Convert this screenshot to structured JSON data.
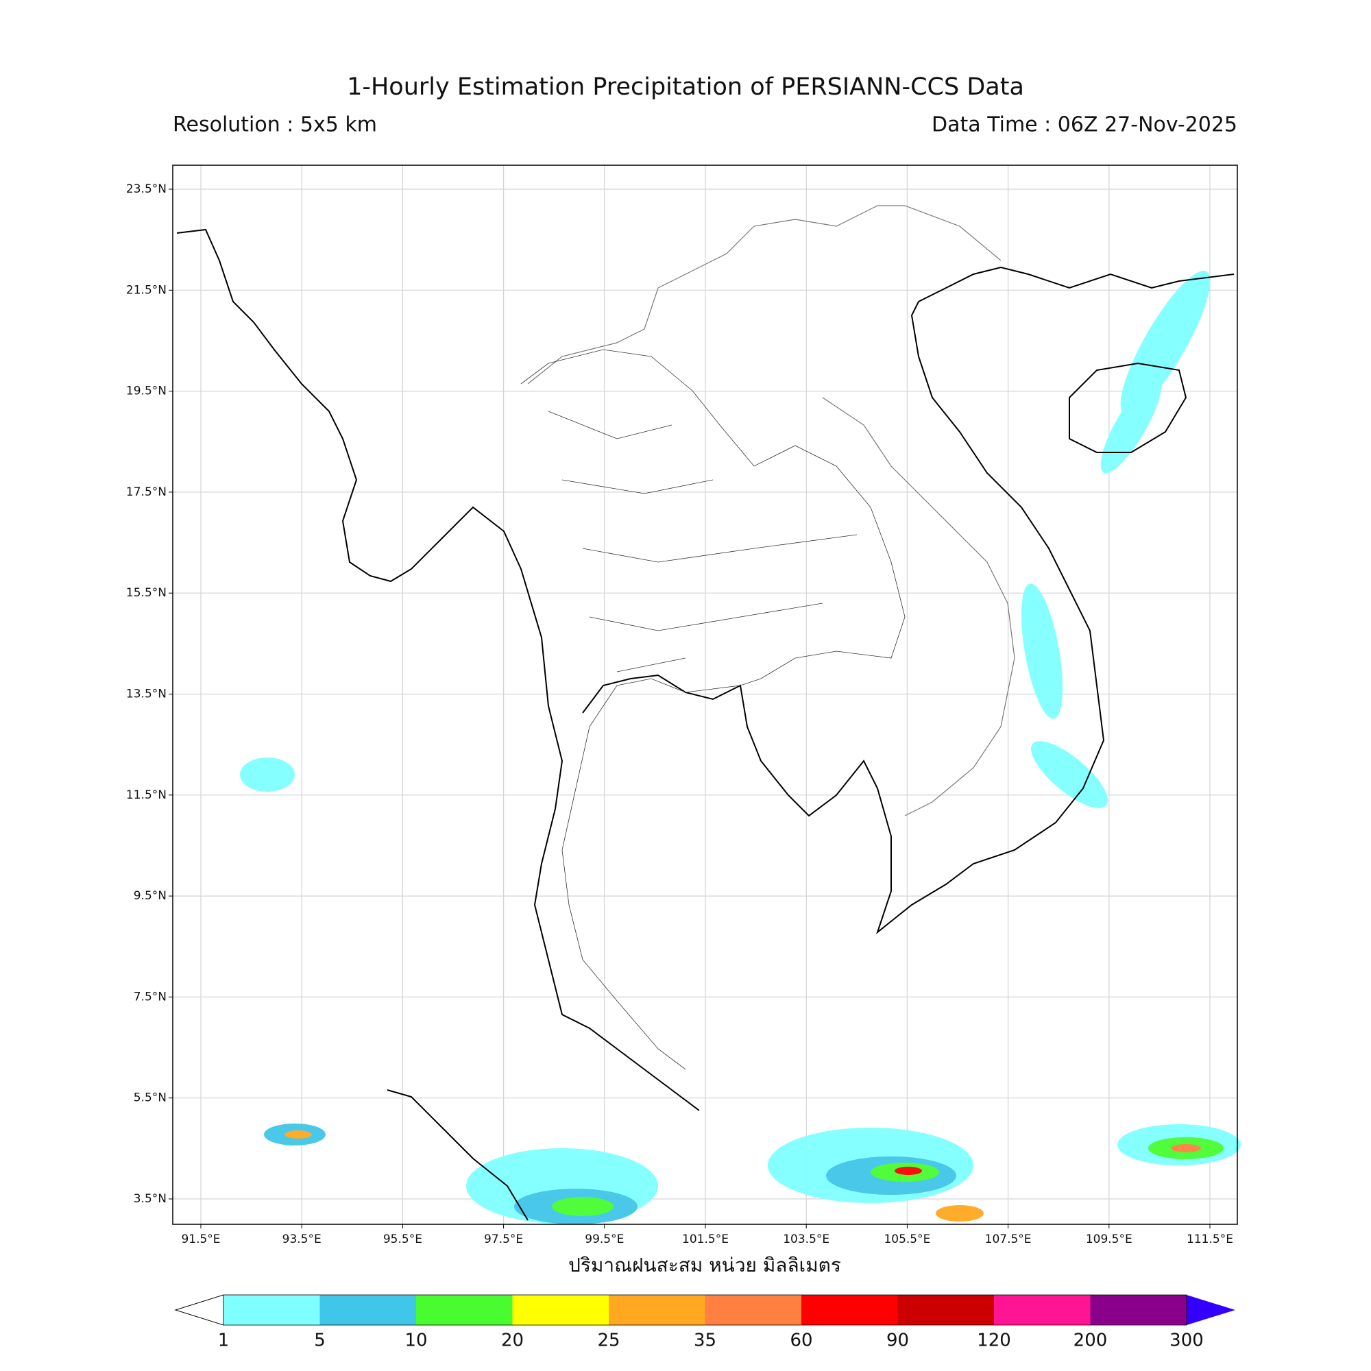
{
  "title": "1-Hourly Estimation Precipitation of PERSIANN-CCS Data",
  "resolution": "Resolution : 5x5 km",
  "data_time": "Data Time : 06Z 27-Nov-2025",
  "x_label": "ปริมาณฝนสะสม หน่วย มิลลิเมตร",
  "lon_ticks": [
    "91.5°E",
    "93.5°E",
    "95.5°E",
    "97.5°E",
    "99.5°E",
    "101.5°E",
    "103.5°E",
    "105.5°E",
    "107.5°E",
    "109.5°E",
    "111.5°E"
  ],
  "lat_ticks": [
    "23.5°N",
    "21.5°N",
    "19.5°N",
    "17.5°N",
    "15.5°N",
    "13.5°N",
    "11.5°N",
    "9.5°N",
    "7.5°N",
    "5.5°N",
    "3.5°N"
  ],
  "colorbar": {
    "levels": [
      1,
      5,
      10,
      20,
      25,
      35,
      60,
      90,
      120,
      200,
      300
    ],
    "colors": [
      "#7fffff",
      "#40c6e8",
      "#48fc30",
      "#ffff00",
      "#ffa820",
      "#ff8040",
      "#ff0000",
      "#cc0000",
      "#ff1493",
      "#8b008b"
    ],
    "under_color": "#ffffff",
    "over_color": "#3300ff"
  }
}
